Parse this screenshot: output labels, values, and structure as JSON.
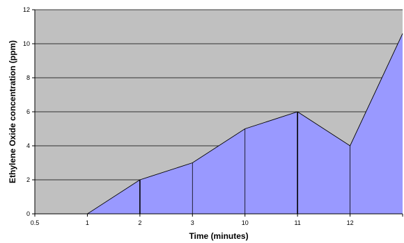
{
  "chart_data": {
    "type": "area",
    "categories": [
      "0.5",
      "1",
      "2",
      "3",
      "10",
      "11",
      "12",
      ""
    ],
    "values": [
      0,
      0,
      2,
      3,
      5,
      6,
      4,
      10.6
    ],
    "xlabel": "Time (minutes)",
    "ylabel": "Ethylene Oxide concentration (ppm)",
    "ylim": [
      0,
      12
    ],
    "yticks": [
      0,
      2,
      4,
      6,
      8,
      10,
      12
    ],
    "grid": true,
    "legend": "none",
    "colors": {
      "plot_background": "#c0c0c0",
      "area_fill": "#9999ff",
      "line": "#000000",
      "gridline": "#000000"
    }
  }
}
